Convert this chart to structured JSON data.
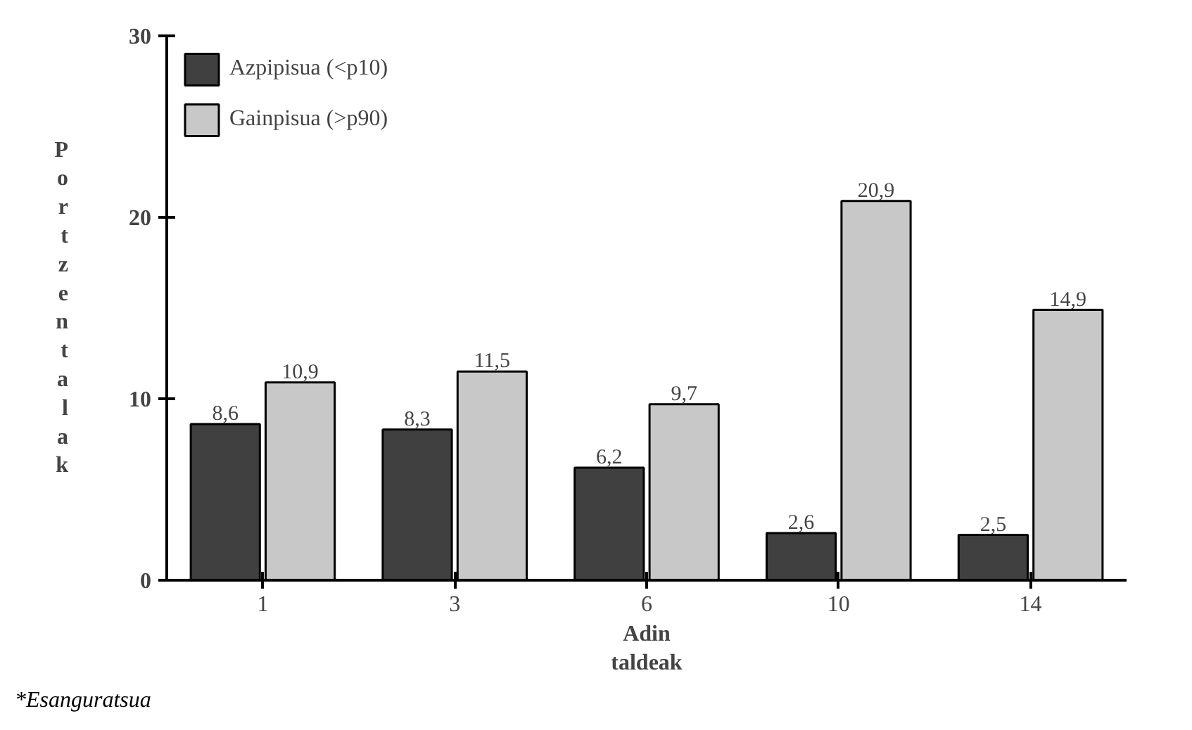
{
  "chart_data": {
    "type": "bar",
    "categories": [
      "1",
      "3",
      "6",
      "10",
      "14"
    ],
    "series": [
      {
        "name": "Azpipisua (<p10)",
        "color": "#404040",
        "values": [
          8.6,
          8.3,
          6.2,
          2.6,
          2.5
        ],
        "value_labels": [
          "8,6",
          "8,3",
          "6,2",
          "2,6",
          "2,5"
        ]
      },
      {
        "name": "Gainpisua (>p90)",
        "color": "#c8c8c8",
        "values": [
          10.9,
          11.5,
          9.7,
          20.9,
          14.9
        ],
        "value_labels": [
          "10,9",
          "11,5",
          "9,7",
          "20,9",
          "14,9"
        ]
      }
    ],
    "ylim": [
      0,
      30
    ],
    "yticks": [
      0,
      10,
      20,
      30
    ],
    "ylabel": "Portzentalak",
    "xlabel": "Adin taldeak",
    "annotations": [
      "*Esanguratsua"
    ],
    "legend": "top left",
    "grid": false
  }
}
